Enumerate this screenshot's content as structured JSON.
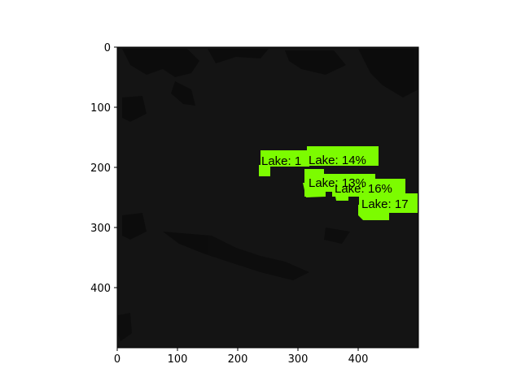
{
  "image": {
    "background_color": "#141414",
    "highlight_color": "#7CFC00",
    "x_range": [
      0,
      500
    ],
    "y_range": [
      0,
      500
    ]
  },
  "axes": {
    "x_ticks": [
      0,
      100,
      200,
      300,
      400
    ],
    "y_ticks": [
      0,
      100,
      200,
      300,
      400
    ],
    "x_tick_labels": [
      "0",
      "100",
      "200",
      "300",
      "400"
    ],
    "y_tick_labels": [
      "0",
      "100",
      "200",
      "300",
      "400"
    ]
  },
  "detections": [
    {
      "label": "Lake: 1",
      "x": 240,
      "y": 185
    },
    {
      "label": "Lake: 14%",
      "x": 318,
      "y": 185
    },
    {
      "label": "Lake: 13%",
      "x": 318,
      "y": 230
    },
    {
      "label": "Lake: 16%",
      "x": 370,
      "y": 236
    },
    {
      "label": "Lake: 17",
      "x": 406,
      "y": 259
    }
  ]
}
